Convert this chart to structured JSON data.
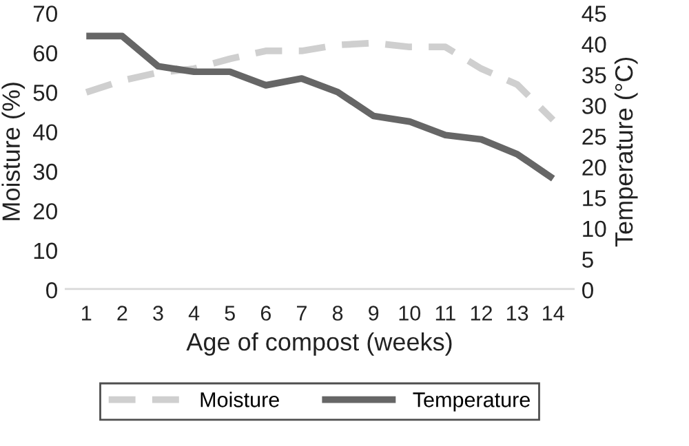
{
  "chart_data": {
    "type": "line",
    "xlabel": "Age of compost (weeks)",
    "ylabel": "Moisture (%)",
    "y2label": "Temperature (°C)",
    "categories": [
      "1",
      "2",
      "3",
      "4",
      "5",
      "6",
      "7",
      "8",
      "9",
      "10",
      "11",
      "12",
      "13",
      "14"
    ],
    "series": [
      {
        "name": "Moisture",
        "color": "#cfcfcf",
        "line_style": "dashed",
        "values": [
          50,
          53,
          55,
          56,
          58.5,
          60.5,
          60.5,
          62,
          62.5,
          61.5,
          61.5,
          56,
          52,
          43
        ]
      },
      {
        "name": "Temperature",
        "color": "#666666",
        "line_style": "solid",
        "axis": "y2",
        "values": [
          41.3,
          41.3,
          36.4,
          35.5,
          35.5,
          33.3,
          34.4,
          32.2,
          28.3,
          27.4,
          25.2,
          24.5,
          22.1,
          18.1
        ]
      }
    ],
    "ylim": [
      0,
      70
    ],
    "yticks": [
      0,
      10,
      20,
      30,
      40,
      50,
      60,
      70
    ],
    "y2lim": [
      0,
      45
    ],
    "y2ticks": [
      0,
      5,
      10,
      15,
      20,
      25,
      30,
      35,
      40,
      45
    ],
    "legend": "bottom",
    "grid": false
  }
}
